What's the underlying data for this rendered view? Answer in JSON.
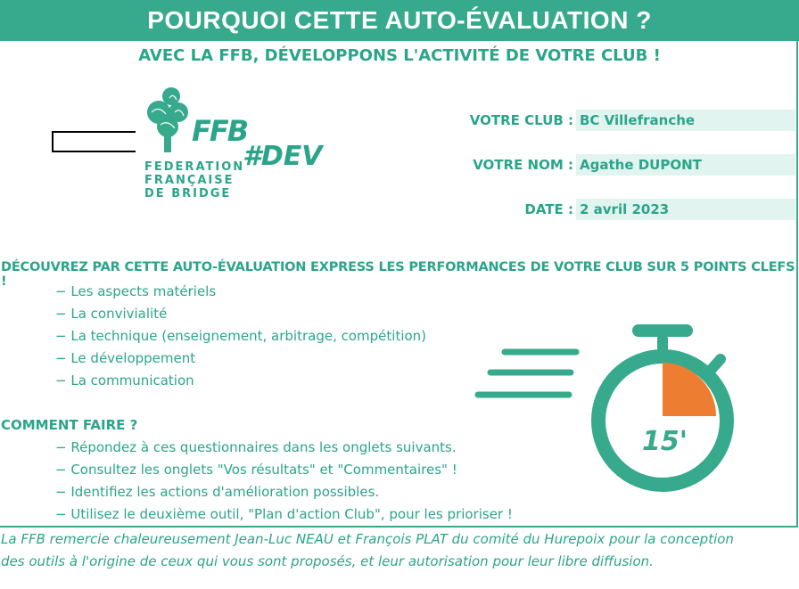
{
  "banner": {
    "title": "POURQUOI CETTE AUTO-ÉVALUATION ?"
  },
  "subtitle": "AVEC LA FFB, DÉVELOPPONS L'ACTIVITÉ DE VOTRE CLUB !",
  "logo": {
    "mark": "FFB",
    "lines": [
      "FEDERATION",
      "FRANÇAISE",
      "DE BRIDGE"
    ],
    "hashtag": "#DEV"
  },
  "form": {
    "club_label": "VOTRE CLUB :",
    "club_value": "BC Villefranche",
    "name_label": "VOTRE NOM :",
    "name_value": "Agathe DUPONT",
    "date_label": "DATE :",
    "date_value": "2 avril 2023"
  },
  "intro": {
    "title": "DÉCOUVREZ PAR CETTE AUTO-ÉVALUATION EXPRESS LES PERFORMANCES DE VOTRE CLUB SUR 5 POINTS CLEFS !",
    "items": [
      "− Les aspects matériels",
      "− La convivialité",
      "− La technique (enseignement, arbitrage, compétition)",
      "− Le développement",
      "− La communication"
    ]
  },
  "howto": {
    "title": "COMMENT FAIRE ?",
    "items": [
      "− Répondez à ces questionnaires dans les onglets suivants.",
      "− Consultez les onglets \"Vos résultats\" et \"Commentaires\" !",
      "− Identifiez les actions d'amélioration possibles.",
      "− Utilisez le deuxième outil, \"Plan d'action Club\", pour les prioriser !"
    ]
  },
  "stopwatch": {
    "label": "15'",
    "accent": "#ed7d31",
    "color": "#37a98c"
  },
  "footer": {
    "line1": "La FFB remercie chaleureusement Jean-Luc NEAU et François PLAT du comité du Hurepoix pour la conception",
    "line2": "des outils à l'origine de ceux qui vous sont proposés, et leur autorisation pour leur libre diffusion."
  },
  "colors": {
    "brand": "#37a98c",
    "text": "#2aa58a",
    "field_bg": "#e2f4ef"
  }
}
